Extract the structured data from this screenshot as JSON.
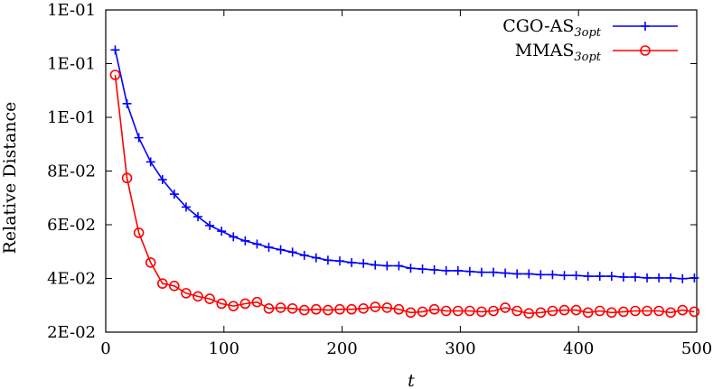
{
  "chart_data": {
    "type": "line",
    "xlabel": "t",
    "ylabel": "Relative Distance",
    "xlim": [
      0,
      500
    ],
    "ylim": [
      0.02,
      0.14
    ],
    "x_ticks": [
      "0",
      "100",
      "200",
      "300",
      "400",
      "500"
    ],
    "y_ticks": [
      "2E-02",
      "4E-02",
      "6E-02",
      "8E-02",
      "1E-01",
      "1E-01",
      "1E-01"
    ],
    "y_tick_values": [
      0.02,
      0.04,
      0.06,
      0.08,
      0.1,
      0.12,
      0.14
    ],
    "grid": false,
    "legend_position": "top-right",
    "series": [
      {
        "name": "CGO-AS",
        "name_subscript": "3opt",
        "color": "#0000ff",
        "marker": "plus",
        "x": [
          8,
          18,
          28,
          38,
          48,
          58,
          68,
          78,
          88,
          98,
          108,
          118,
          128,
          138,
          148,
          158,
          168,
          178,
          188,
          198,
          208,
          218,
          228,
          238,
          248,
          258,
          268,
          278,
          288,
          298,
          308,
          318,
          328,
          338,
          348,
          358,
          368,
          378,
          388,
          398,
          408,
          418,
          428,
          438,
          448,
          458,
          468,
          478,
          488,
          498
        ],
        "values": [
          0.1251,
          0.1051,
          0.0924,
          0.0834,
          0.0768,
          0.0714,
          0.0666,
          0.063,
          0.0597,
          0.0576,
          0.0555,
          0.054,
          0.0528,
          0.0516,
          0.0507,
          0.0498,
          0.0486,
          0.0477,
          0.0468,
          0.0465,
          0.0459,
          0.0456,
          0.045,
          0.0447,
          0.0447,
          0.0438,
          0.0435,
          0.0432,
          0.0429,
          0.0429,
          0.0426,
          0.0423,
          0.0423,
          0.042,
          0.0417,
          0.0417,
          0.0414,
          0.0414,
          0.0411,
          0.0411,
          0.0408,
          0.0408,
          0.0408,
          0.0405,
          0.0405,
          0.0402,
          0.0402,
          0.0402,
          0.0399,
          0.0402
        ]
      },
      {
        "name": "MMAS",
        "name_subscript": "3opt",
        "color": "#ff0000",
        "marker": "circle",
        "x": [
          8,
          18,
          28,
          38,
          48,
          58,
          68,
          78,
          88,
          98,
          108,
          118,
          128,
          138,
          148,
          158,
          168,
          178,
          188,
          198,
          208,
          218,
          228,
          238,
          248,
          258,
          268,
          278,
          288,
          298,
          308,
          318,
          328,
          338,
          348,
          358,
          368,
          378,
          388,
          398,
          408,
          418,
          428,
          438,
          448,
          458,
          468,
          478,
          488,
          498
        ],
        "values": [
          0.1158,
          0.0774,
          0.057,
          0.0459,
          0.0381,
          0.0372,
          0.0345,
          0.0333,
          0.0324,
          0.0306,
          0.0297,
          0.0306,
          0.0312,
          0.0288,
          0.0291,
          0.0288,
          0.0282,
          0.0285,
          0.0282,
          0.0285,
          0.0285,
          0.0288,
          0.0294,
          0.0291,
          0.0285,
          0.0273,
          0.0276,
          0.0285,
          0.0279,
          0.0279,
          0.0279,
          0.0276,
          0.0279,
          0.0291,
          0.0279,
          0.027,
          0.0273,
          0.0279,
          0.0282,
          0.0282,
          0.0273,
          0.0279,
          0.0273,
          0.0276,
          0.0279,
          0.0279,
          0.0279,
          0.0273,
          0.0282,
          0.0276
        ]
      }
    ]
  }
}
